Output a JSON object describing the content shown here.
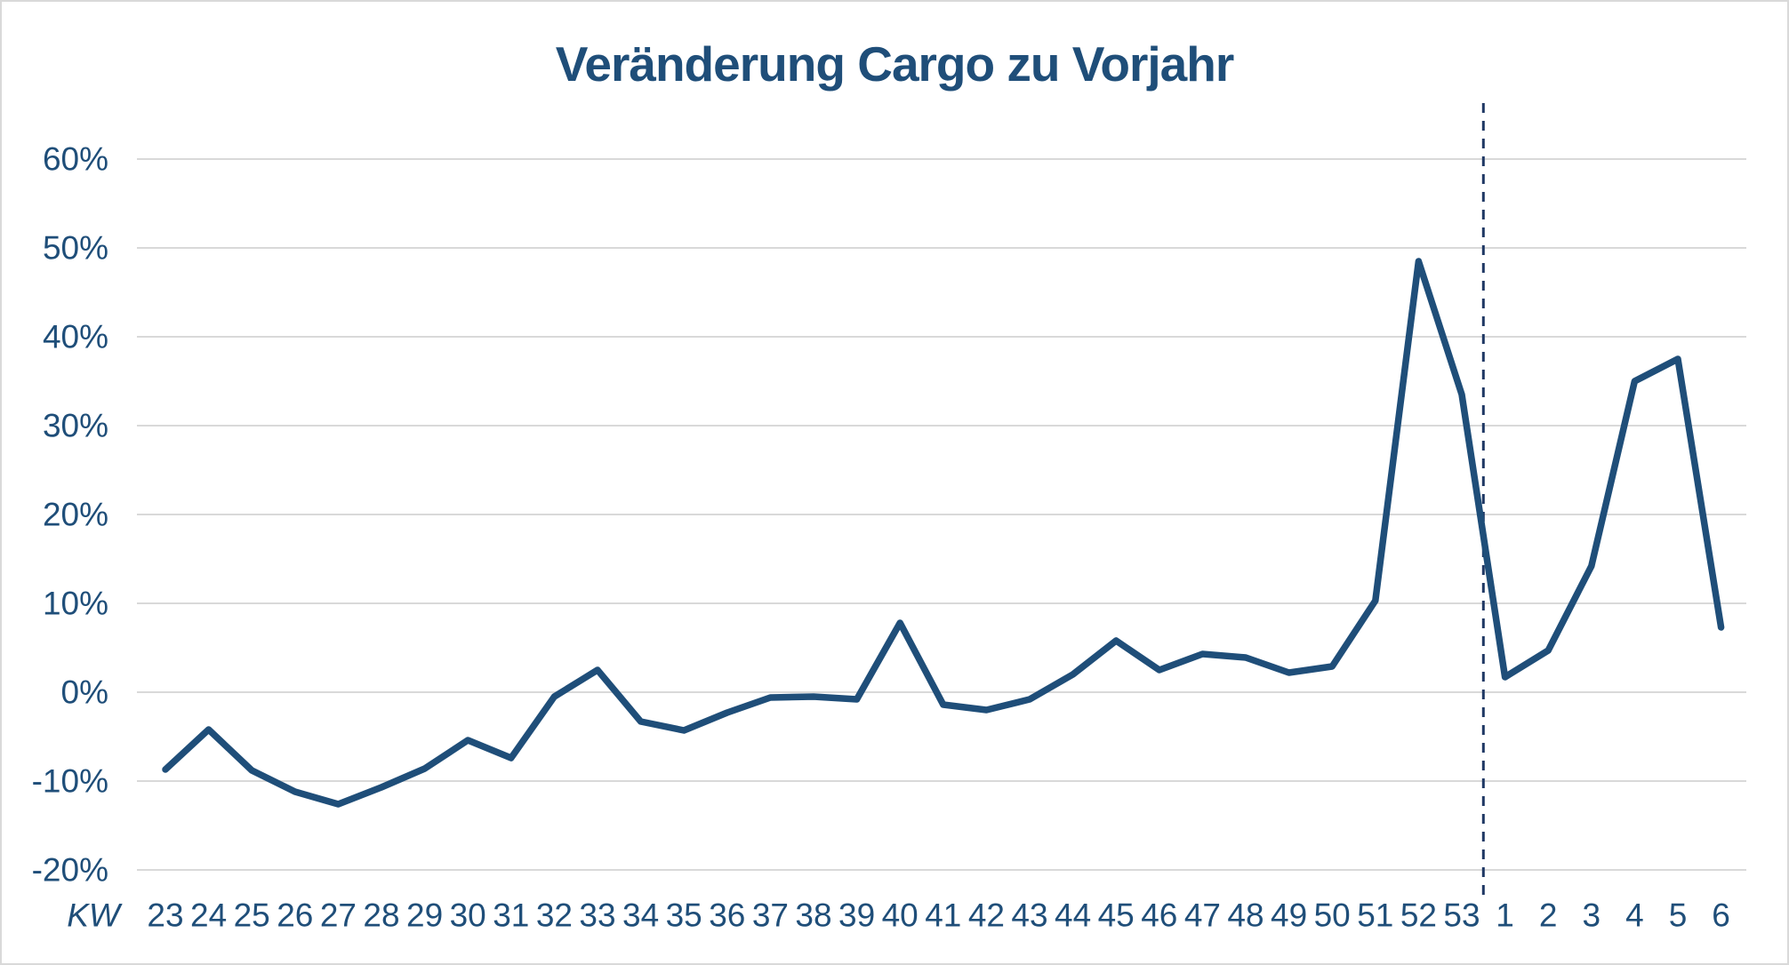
{
  "title": "Veränderung Cargo zu Vorjahr",
  "chart_data": {
    "type": "line",
    "title": "Veränderung Cargo zu Vorjahr",
    "x_axis_label": "KW",
    "unit": "%",
    "categories": [
      "23",
      "24",
      "25",
      "26",
      "27",
      "28",
      "29",
      "30",
      "31",
      "32",
      "33",
      "34",
      "35",
      "36",
      "37",
      "38",
      "39",
      "40",
      "41",
      "42",
      "43",
      "44",
      "45",
      "46",
      "47",
      "48",
      "49",
      "50",
      "51",
      "52",
      "53",
      "1",
      "2",
      "3",
      "4",
      "5",
      "6"
    ],
    "values": [
      -8.7,
      -4.2,
      -8.8,
      -11.2,
      -12.6,
      -10.7,
      -8.6,
      -5.4,
      -7.4,
      -0.5,
      2.5,
      -3.3,
      -4.3,
      -2.3,
      -0.6,
      -0.5,
      -0.8,
      7.8,
      -1.4,
      -2.0,
      -0.8,
      2.0,
      5.8,
      2.5,
      4.3,
      3.9,
      2.2,
      2.9,
      10.3,
      48.5,
      33.5,
      1.7,
      4.7,
      14.2,
      35.0,
      37.5,
      7.3
    ],
    "ylim": [
      -20,
      60
    ],
    "y_ticks": [
      {
        "value": 60,
        "label": "60%"
      },
      {
        "value": 50,
        "label": "50%"
      },
      {
        "value": 40,
        "label": "40%"
      },
      {
        "value": 30,
        "label": "30%"
      },
      {
        "value": 20,
        "label": "20%"
      },
      {
        "value": 10,
        "label": "10%"
      },
      {
        "value": 0,
        "label": "0%"
      },
      {
        "value": -10,
        "label": "-10%"
      },
      {
        "value": -20,
        "label": "-20%"
      }
    ],
    "separator_after_category": "53",
    "grid": "horizontal",
    "legend": "none",
    "colors": {
      "line": "#1f4e79",
      "text": "#1f4e79",
      "gridline": "#d9d9d9",
      "separator": "#1f3864",
      "background": "#ffffff",
      "frame_border": "#d9d9d9"
    }
  }
}
